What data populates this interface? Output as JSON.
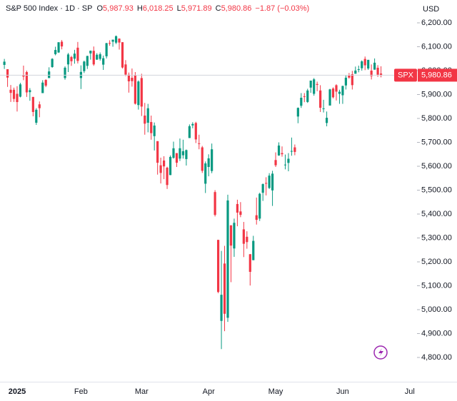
{
  "chart_data": {
    "type": "candlestick",
    "header": {
      "title": "S&P 500 Index · 1D · SP",
      "o_label": "O",
      "o_value": "5,987.93",
      "h_label": "H",
      "h_value": "6,018.25",
      "l_label": "L",
      "l_value": "5,971.89",
      "c_label": "C",
      "c_value": "5,980.86",
      "change": "−1.87 (−0.03%)"
    },
    "currency": "USD",
    "price_tag": {
      "symbol": "SPX",
      "value": "5,980.86"
    },
    "up_color": "#089981",
    "down_color": "#f23645",
    "categories": [
      null,
      null,
      null,
      null,
      "2025",
      null,
      null,
      null,
      null,
      null,
      null,
      null,
      null,
      null,
      null,
      null,
      null,
      null,
      null,
      null,
      null,
      null,
      null,
      null,
      "Feb",
      null,
      null,
      null,
      null,
      null,
      null,
      null,
      null,
      null,
      null,
      null,
      null,
      null,
      null,
      null,
      null,
      null,
      null,
      "Mar",
      null,
      null,
      null,
      null,
      null,
      null,
      null,
      null,
      null,
      null,
      null,
      null,
      null,
      null,
      null,
      null,
      null,
      null,
      null,
      null,
      "Apr",
      null,
      null,
      null,
      null,
      null,
      null,
      null,
      null,
      null,
      null,
      null,
      null,
      null,
      null,
      null,
      null,
      null,
      null,
      null,
      null,
      "May",
      null,
      null,
      null,
      null,
      null,
      null,
      null,
      null,
      null,
      null,
      null,
      null,
      null,
      null,
      null,
      null,
      null,
      null,
      null,
      null,
      "Jun",
      null,
      null,
      null,
      null,
      null,
      null,
      null,
      null,
      null,
      null,
      null,
      null
    ],
    "x_extra_labels": [
      "Jul"
    ],
    "series": {
      "open": [
        6024,
        6006,
        5920,
        5920,
        5903,
        5891,
        5982,
        5994,
        5910,
        5890,
        5782,
        5859,
        5906,
        5961,
        5969,
        6015,
        6069,
        6076,
        6121,
        5969,
        6026,
        6057,
        6050,
        6096,
        5969,
        5998,
        6020,
        6072,
        6083,
        6046,
        6049,
        6025,
        6060,
        6116,
        6121,
        6117,
        6134,
        6119,
        6026,
        5983,
        5970,
        5981,
        5856,
        5969,
        5812,
        5782,
        5785,
        5726,
        5705,
        5604,
        5624,
        5594,
        5563,
        5635,
        5655,
        5632,
        5646,
        5630,
        5718,
        5771,
        5781,
        5696,
        5679,
        5527,
        5597,
        5580,
        5492,
        5292,
        4953,
        5193,
        4966,
        5353,
        5256,
        5442,
        5411,
        5336,
        5305,
        5232,
        5207,
        5395,
        5381,
        5489,
        5530,
        5509,
        5499,
        5626,
        5645,
        5655,
        5605,
        5614,
        5663,
        5679,
        5808,
        5853,
        5893,
        5869,
        5929,
        5903,
        5944,
        5917,
        5842,
        5781,
        5854,
        5925,
        5939,
        5903,
        5897,
        5938,
        5979,
        5985,
        5987,
        6005,
        6010,
        6049,
        6009,
        6000,
        6004,
        6012,
        5987.93
      ],
      "high": [
        6049,
        6006,
        5940,
        5929,
        5935,
        5949,
        6021,
        6000,
        5927,
        5890,
        5843,
        5871,
        5960,
        5964,
        6014,
        6052,
        6100,
        6119,
        6128,
        6018,
        6074,
        6062,
        6087,
        6120,
        6022,
        6042,
        6062,
        6084,
        6101,
        6073,
        6076,
        6063,
        6116,
        6127,
        6129,
        6147,
        6135,
        6119,
        6044,
        5992,
        6009,
        5994,
        5959,
        5987,
        5865,
        5861,
        5812,
        5783,
        5705,
        5636,
        5642,
        5598,
        5645,
        5703,
        5655,
        5716,
        5711,
        5670,
        5775,
        5784,
        5786,
        5732,
        5685,
        5620,
        5650,
        5695,
        5500,
        5292,
        5246,
        5267,
        5481,
        5353,
        5381,
        5460,
        5450,
        5367,
        5328,
        5233,
        5309,
        5469,
        5489,
        5528,
        5554,
        5571,
        5581,
        5658,
        5700,
        5683,
        5649,
        5655,
        5720,
        5691,
        5846,
        5906,
        5906,
        5924,
        5958,
        5969,
        5954,
        5939,
        5878,
        5829,
        5924,
        5930,
        5943,
        5920,
        5937,
        5981,
        5990,
        5999,
        6017,
        6021,
        6043,
        6059,
        6045,
        6026,
        6051,
        6023,
        6018.25
      ],
      "low": [
        6007,
        5932,
        5869,
        5869,
        5829,
        5888,
        5960,
        5890,
        5874,
        5809,
        5773,
        5805,
        5906,
        5931,
        5969,
        6012,
        6064,
        6074,
        6089,
        5962,
        5994,
        6020,
        6029,
        6030,
        5923,
        5990,
        6007,
        6046,
        6020,
        6045,
        6042,
        6003,
        6051,
        6104,
        6100,
        6111,
        6088,
        6009,
        5977,
        5908,
        5933,
        5858,
        5837,
        5810,
        5732,
        5742,
        5711,
        5666,
        5565,
        5528,
        5546,
        5505,
        5563,
        5632,
        5597,
        5622,
        5632,
        5603,
        5718,
        5759,
        5697,
        5671,
        5572,
        5488,
        5558,
        5571,
        5390,
        5069,
        4835,
        4910,
        4949,
        5115,
        5221,
        5349,
        5387,
        5220,
        5255,
        5101,
        5207,
        5356,
        5371,
        5455,
        5478,
        5505,
        5434,
        5597,
        5644,
        5640,
        5587,
        5579,
        5644,
        5646,
        5780,
        5844,
        5868,
        5865,
        5907,
        5895,
        5914,
        5827,
        5825,
        5767,
        5854,
        5884,
        5875,
        5861,
        5861,
        5921,
        5966,
        5921,
        5987,
        5993,
        6000,
        6002,
        6003,
        5963,
        6004,
        5974,
        5971.89
      ],
      "close": [
        6037.59,
        5970.84,
        5906.94,
        5881.63,
        5868.55,
        5942.47,
        5975.38,
        5909.03,
        5918.25,
        5827.04,
        5836.22,
        5842.91,
        5949.91,
        5937.34,
        5996.66,
        6049.24,
        6086.37,
        6118.71,
        6101.24,
        6012.28,
        6067.7,
        6039.31,
        6071.17,
        6040.53,
        5994.57,
        6037.88,
        6061.48,
        6083.57,
        6025.99,
        6066.44,
        6068.5,
        6051.97,
        6115.07,
        6114.63,
        6129.58,
        6144.15,
        6117.52,
        6013.13,
        5983.25,
        5955.25,
        5956.06,
        5861.57,
        5954.5,
        5849.72,
        5778.15,
        5842.63,
        5738.52,
        5770.2,
        5614.56,
        5572.07,
        5599.3,
        5521.52,
        5638.94,
        5675.12,
        5614.66,
        5675.29,
        5662.89,
        5667.56,
        5767.57,
        5776.65,
        5712.2,
        5693.31,
        5580.94,
        5611.85,
        5633.07,
        5670.97,
        5396.52,
        5074.08,
        5062.25,
        4982.77,
        5456.9,
        5268.05,
        5363.36,
        5405.97,
        5396.63,
        5275.7,
        5282.7,
        5158.2,
        5287.76,
        5375.86,
        5484.77,
        5525.21,
        5528.75,
        5560.83,
        5569.06,
        5604.14,
        5686.67,
        5650.38,
        5606.91,
        5631.28,
        5663.94,
        5659.91,
        5844.19,
        5886.55,
        5892.58,
        5916.93,
        5958.38,
        5963.6,
        5940.46,
        5844.61,
        5842.01,
        5802.82,
        5921.54,
        5888.55,
        5912.17,
        5911.69,
        5935.94,
        5970.37,
        5970.81,
        5939.3,
        6000.36,
        6005.88,
        6038.81,
        6022.24,
        6045.26,
        5976.97,
        6033.11,
        5982.72,
        5980.86
      ]
    },
    "ylim": [
      4698.5,
      6295.5
    ],
    "yticks": [
      {
        "value": 4800,
        "label": "4,800.00"
      },
      {
        "value": 4900,
        "label": "4,900.00"
      },
      {
        "value": 5000,
        "label": "5,000.00"
      },
      {
        "value": 5100,
        "label": "5,100.00"
      },
      {
        "value": 5200,
        "label": "5,200.00"
      },
      {
        "value": 5300,
        "label": "5,300.00"
      },
      {
        "value": 5400,
        "label": "5,400.00"
      },
      {
        "value": 5500,
        "label": "5,500.00"
      },
      {
        "value": 5600,
        "label": "5,600.00"
      },
      {
        "value": 5700,
        "label": "5,700.00"
      },
      {
        "value": 5800,
        "label": "5,800.00"
      },
      {
        "value": 5900,
        "label": "5,900.00"
      },
      {
        "value": 6000,
        "label": "6,000.00"
      },
      {
        "value": 6100,
        "label": "6,100.00"
      },
      {
        "value": 6200,
        "label": "6,200.00"
      }
    ]
  }
}
